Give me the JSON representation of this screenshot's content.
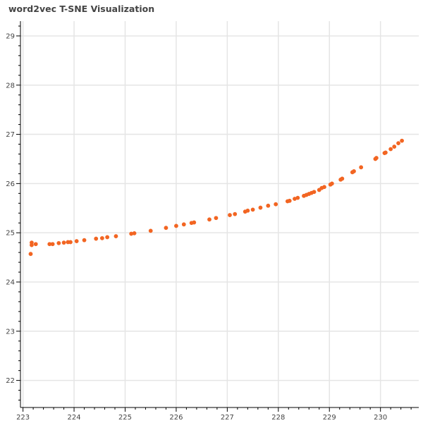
{
  "title": "word2vec T-SNE Visualization",
  "colors": {
    "marker": "#f26522",
    "grid": "#e5e5e5",
    "axis": "#000000",
    "text": "#444444"
  },
  "chart_data": {
    "type": "scatter",
    "title": "word2vec T-SNE Visualization",
    "xlabel": "",
    "ylabel": "",
    "xlim": [
      222.95,
      230.75
    ],
    "ylim": [
      21.45,
      29.3
    ],
    "xticks": [
      223,
      224,
      225,
      226,
      227,
      228,
      229,
      230
    ],
    "yticks": [
      22,
      23,
      24,
      25,
      26,
      27,
      28,
      29
    ],
    "grid": true,
    "points": [
      {
        "x": 223.15,
        "y": 24.57
      },
      {
        "x": 223.17,
        "y": 24.8
      },
      {
        "x": 223.17,
        "y": 24.75
      },
      {
        "x": 223.25,
        "y": 24.77
      },
      {
        "x": 223.52,
        "y": 24.77
      },
      {
        "x": 223.58,
        "y": 24.77
      },
      {
        "x": 223.7,
        "y": 24.79
      },
      {
        "x": 223.8,
        "y": 24.8
      },
      {
        "x": 223.88,
        "y": 24.81
      },
      {
        "x": 223.93,
        "y": 24.81
      },
      {
        "x": 224.05,
        "y": 24.83
      },
      {
        "x": 224.2,
        "y": 24.85
      },
      {
        "x": 224.43,
        "y": 24.88
      },
      {
        "x": 224.55,
        "y": 24.89
      },
      {
        "x": 224.65,
        "y": 24.91
      },
      {
        "x": 224.82,
        "y": 24.93
      },
      {
        "x": 225.12,
        "y": 24.98
      },
      {
        "x": 225.18,
        "y": 24.99
      },
      {
        "x": 225.5,
        "y": 25.04
      },
      {
        "x": 225.8,
        "y": 25.1
      },
      {
        "x": 226.0,
        "y": 25.14
      },
      {
        "x": 226.15,
        "y": 25.17
      },
      {
        "x": 226.3,
        "y": 25.2
      },
      {
        "x": 226.35,
        "y": 25.21
      },
      {
        "x": 226.65,
        "y": 25.27
      },
      {
        "x": 226.78,
        "y": 25.3
      },
      {
        "x": 227.05,
        "y": 25.36
      },
      {
        "x": 227.15,
        "y": 25.38
      },
      {
        "x": 227.35,
        "y": 25.43
      },
      {
        "x": 227.4,
        "y": 25.45
      },
      {
        "x": 227.5,
        "y": 25.47
      },
      {
        "x": 227.65,
        "y": 25.51
      },
      {
        "x": 227.8,
        "y": 25.55
      },
      {
        "x": 227.95,
        "y": 25.58
      },
      {
        "x": 228.18,
        "y": 25.64
      },
      {
        "x": 228.22,
        "y": 25.65
      },
      {
        "x": 228.32,
        "y": 25.69
      },
      {
        "x": 228.38,
        "y": 25.71
      },
      {
        "x": 228.5,
        "y": 25.75
      },
      {
        "x": 228.55,
        "y": 25.77
      },
      {
        "x": 228.6,
        "y": 25.79
      },
      {
        "x": 228.65,
        "y": 25.81
      },
      {
        "x": 228.7,
        "y": 25.83
      },
      {
        "x": 228.8,
        "y": 25.87
      },
      {
        "x": 228.85,
        "y": 25.91
      },
      {
        "x": 228.9,
        "y": 25.93
      },
      {
        "x": 229.02,
        "y": 25.98
      },
      {
        "x": 229.05,
        "y": 26.0
      },
      {
        "x": 229.22,
        "y": 26.08
      },
      {
        "x": 229.25,
        "y": 26.1
      },
      {
        "x": 229.45,
        "y": 26.23
      },
      {
        "x": 229.48,
        "y": 26.25
      },
      {
        "x": 229.62,
        "y": 26.33
      },
      {
        "x": 229.9,
        "y": 26.5
      },
      {
        "x": 229.92,
        "y": 26.52
      },
      {
        "x": 230.08,
        "y": 26.62
      },
      {
        "x": 230.1,
        "y": 26.63
      },
      {
        "x": 230.2,
        "y": 26.7
      },
      {
        "x": 230.27,
        "y": 26.75
      },
      {
        "x": 230.35,
        "y": 26.82
      },
      {
        "x": 230.42,
        "y": 26.87
      }
    ]
  }
}
